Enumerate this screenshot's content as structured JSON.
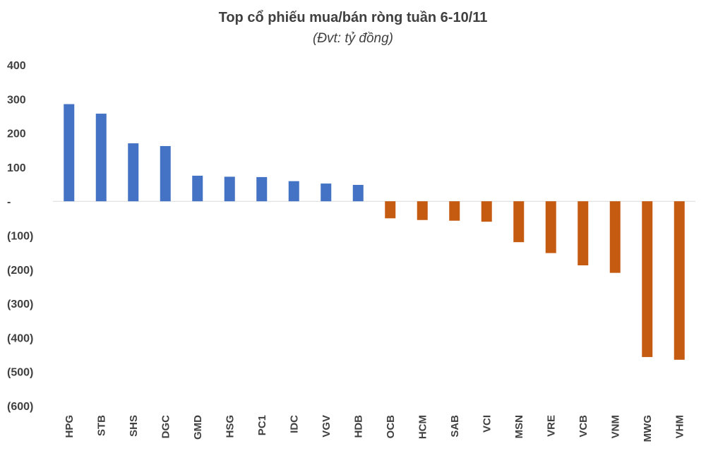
{
  "chart_data": {
    "type": "bar",
    "title": "Top cổ phiếu mua/bán ròng tuần 6-10/11",
    "subtitle": "(Đvt: tỷ đồng)",
    "xlabel": "",
    "ylabel": "",
    "ylim": [
      -600,
      400
    ],
    "yticks": [
      400,
      300,
      200,
      100,
      0,
      -100,
      -200,
      -300,
      -400,
      -500,
      -600
    ],
    "ytick_labels": [
      "400",
      "300",
      "200",
      "100",
      "-",
      "(100)",
      "(200)",
      "(300)",
      "(400)",
      "(500)",
      "(600)"
    ],
    "categories": [
      "HPG",
      "STB",
      "SHS",
      "DGC",
      "GMD",
      "HSG",
      "PC1",
      "IDC",
      "VGV",
      "HDB",
      "OCB",
      "HCM",
      "SAB",
      "VCI",
      "MSN",
      "VRE",
      "VCB",
      "VNM",
      "MWG",
      "VHM"
    ],
    "values": [
      285,
      257,
      170,
      162,
      75,
      72,
      71,
      59,
      52,
      48,
      -50,
      -55,
      -57,
      -60,
      -120,
      -152,
      -188,
      -210,
      -457,
      -465
    ],
    "colors": {
      "positive": "#4472C4",
      "negative": "#C55A11",
      "axis": "#D9D9D9"
    },
    "grid": false,
    "legend": "none"
  }
}
